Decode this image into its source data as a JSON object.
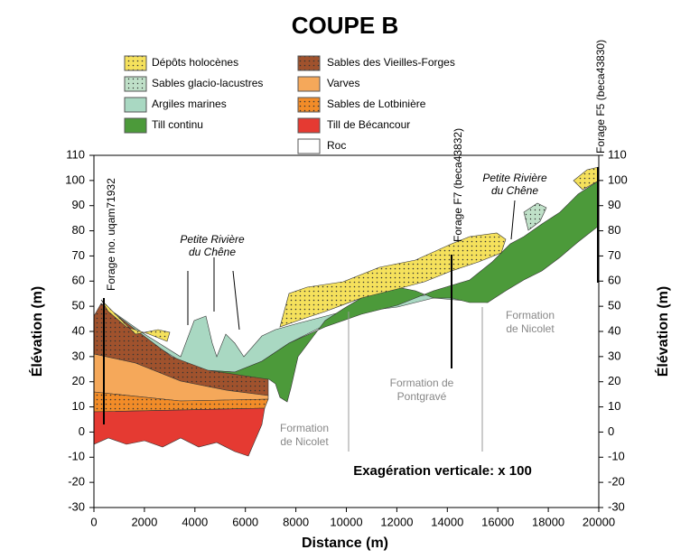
{
  "title": "COUPE B",
  "legend": {
    "left": [
      "Dépôts holocènes",
      "Sables glacio-lacustres",
      "Argiles marines",
      "Till continu"
    ],
    "right": [
      "Sables des Vieilles-Forges",
      "Varves",
      "Sables de Lotbinière",
      "Till de Bécancour",
      "Roc"
    ]
  },
  "x_axis": {
    "label": "Distance (m)",
    "ticks": [
      0,
      2000,
      4000,
      6000,
      8000,
      10000,
      12000,
      14000,
      16000,
      18000,
      20000
    ]
  },
  "y_axis": {
    "label": "Élévation (m)",
    "ticks": [
      110,
      100,
      90,
      80,
      70,
      60,
      50,
      40,
      30,
      20,
      10,
      0,
      -10,
      -20,
      -30
    ]
  },
  "boreholes": [
    "Forage no. uqam71932",
    "Forage F7 (beca43832)",
    "Forage F5 (beca43830)"
  ],
  "rivers": [
    [
      "Petite Rivière",
      "du Chêne"
    ],
    [
      "Petite Rivière",
      "du Chêne"
    ]
  ],
  "formations": [
    [
      "Formation",
      "de Nicolet"
    ],
    [
      "Formation de",
      "Pontgravé"
    ],
    [
      "Formation",
      "de Nicolet"
    ]
  ],
  "note": "Exagération verticale: x 100"
}
